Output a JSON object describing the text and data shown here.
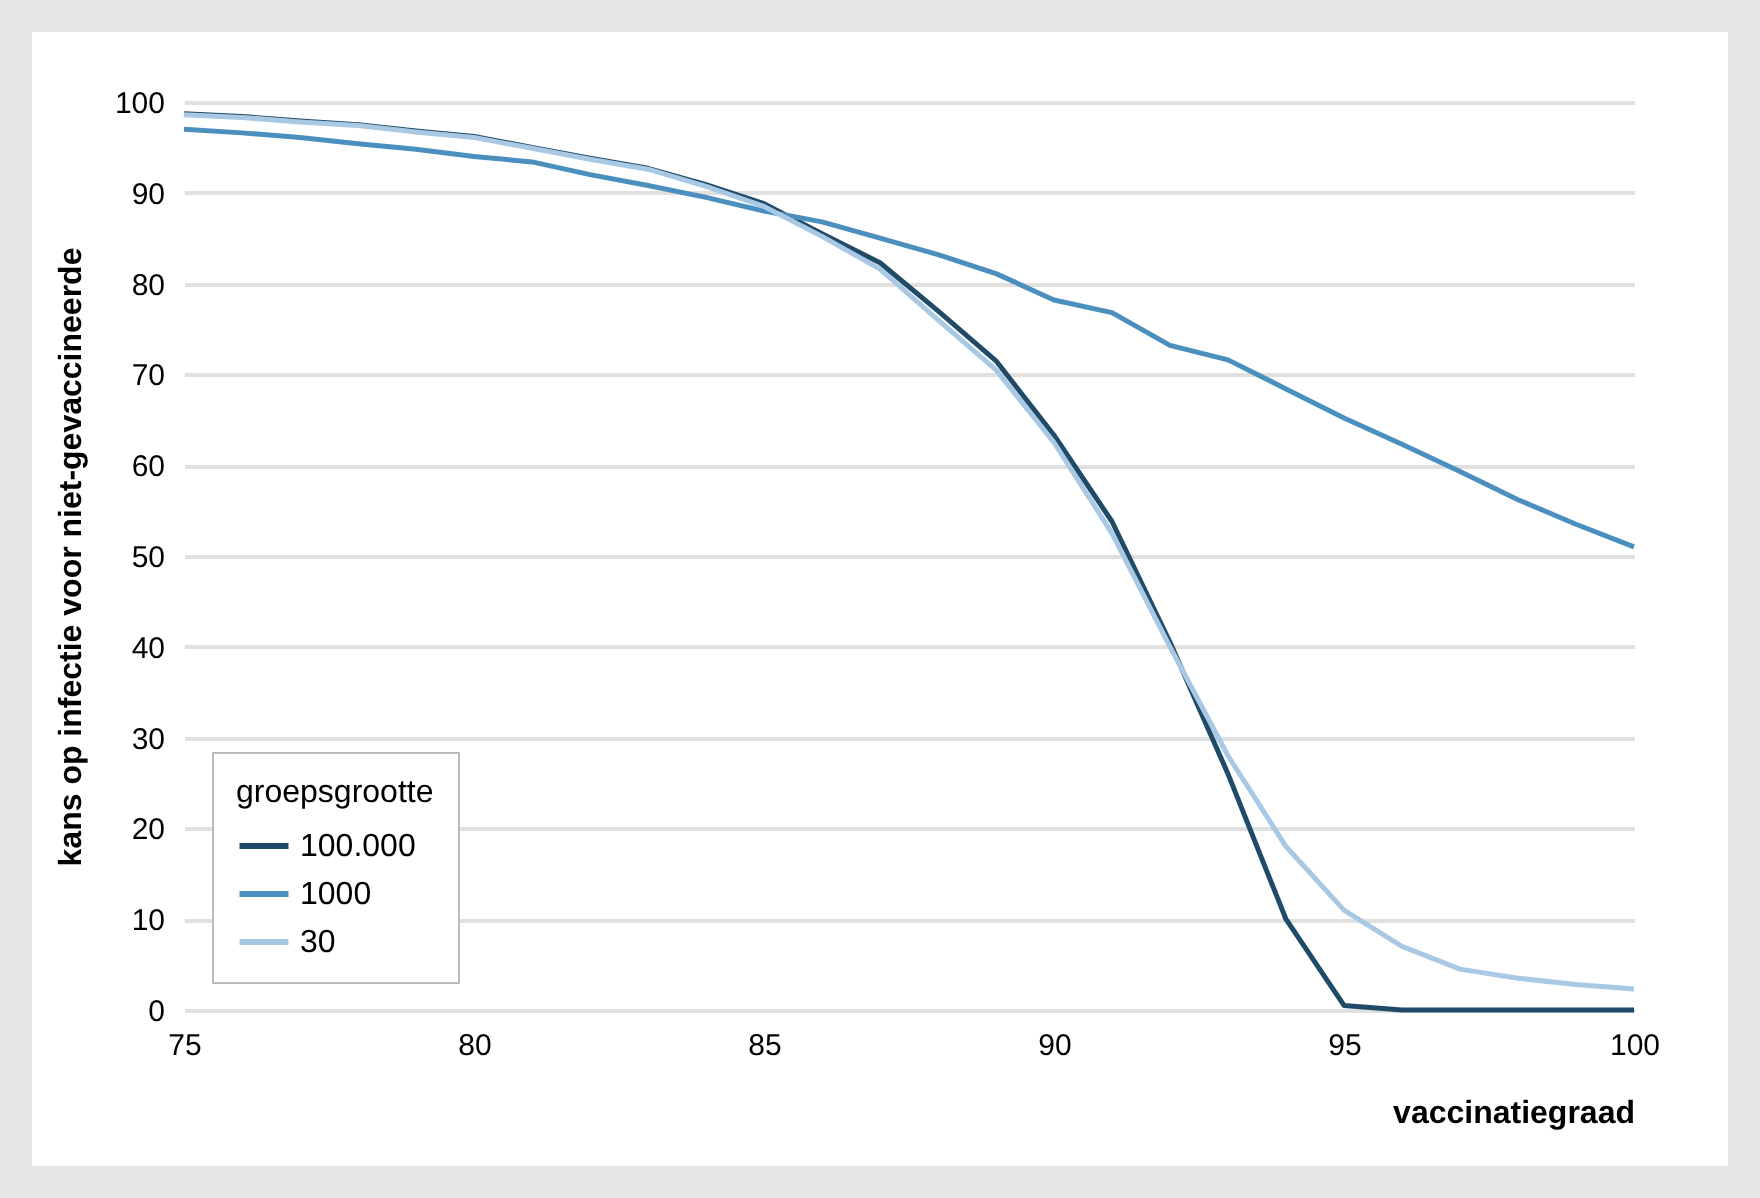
{
  "chart_data": {
    "type": "line",
    "xlabel": "vaccinatiegraad",
    "ylabel": "kans op infectie voor niet-gevaccineerde",
    "legend_title": "groepsgrootte",
    "legend": "bottom left",
    "grid": "y",
    "line_style": "solid",
    "x": [
      75,
      76,
      77,
      78,
      79,
      80,
      81,
      82,
      83,
      84,
      85,
      86,
      87,
      88,
      89,
      90,
      91,
      92,
      93,
      94,
      95,
      96,
      97,
      98,
      99,
      100
    ],
    "xlim": [
      75,
      100
    ],
    "xticks": [
      75,
      80,
      85,
      90,
      95,
      100
    ],
    "ylim": [
      0,
      100
    ],
    "yticks": [
      0,
      10,
      20,
      30,
      40,
      50,
      60,
      70,
      80,
      90,
      100
    ],
    "series": [
      {
        "name": "100.000",
        "color": "#1f4b68",
        "values": [
          98.7,
          98.4,
          97.9,
          97.5,
          96.8,
          96.2,
          95,
          93.8,
          92.7,
          90.9,
          88.8,
          85.5,
          82.3,
          77,
          71.5,
          63.3,
          53.8,
          40.5,
          26,
          10,
          0.5,
          0,
          0,
          0,
          0,
          0
        ]
      },
      {
        "name": "1000",
        "color": "#4a8fbd",
        "values": [
          97,
          96.6,
          96.1,
          95.4,
          94.8,
          94,
          93.4,
          92,
          90.8,
          89.5,
          88,
          86.8,
          85,
          83.2,
          81.1,
          78.2,
          76.8,
          73.2,
          71.6,
          68.4,
          65.2,
          62.3,
          59.3,
          56.2,
          53.5,
          51
        ]
      },
      {
        "name": "30",
        "color": "#a9c8e3",
        "values": [
          98.6,
          98.3,
          97.8,
          97.4,
          96.7,
          96.1,
          94.9,
          93.7,
          92.6,
          90.7,
          88.5,
          85.2,
          81.6,
          76,
          70.5,
          62.5,
          52.5,
          40,
          28,
          18,
          11,
          7,
          4.5,
          3.5,
          2.8,
          2.3
        ]
      }
    ]
  }
}
